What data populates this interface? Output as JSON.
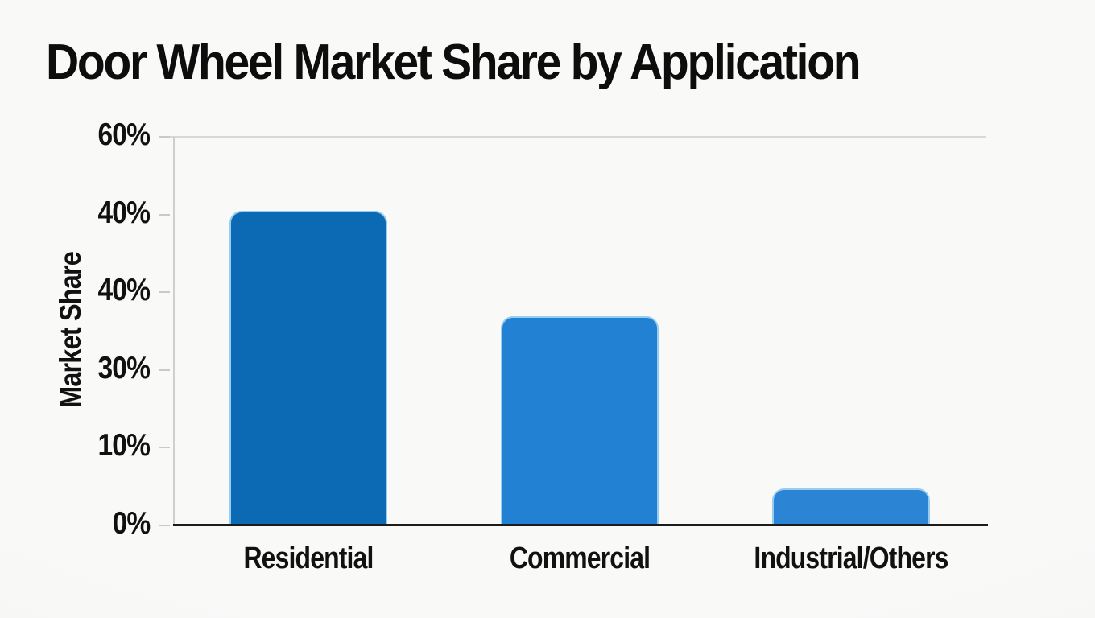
{
  "chart_data": {
    "type": "bar",
    "title": "Door Wheel Market Share by Application",
    "ylabel": "Market Share",
    "xlabel": "",
    "categories": [
      "Residential",
      "Commercial",
      "Industrial/Others"
    ],
    "values": [
      48.6,
      32.3,
      5.7
    ],
    "unit": "%",
    "ylim": [
      0,
      60
    ],
    "ytick_labels_top_to_bottom": [
      "60%",
      "40%",
      "40%",
      "30%",
      "10%",
      "0%"
    ],
    "bar_colors": [
      "#0c69b4",
      "#2381d3",
      "#2b84d4"
    ],
    "bar_edge_color": "#96cdf0",
    "grid": "single light gridline at top (60% level)",
    "legend_position": "none",
    "background_color": "#f8f8f6",
    "axis_color": "#1b1b1b",
    "text_color": "#111111"
  }
}
